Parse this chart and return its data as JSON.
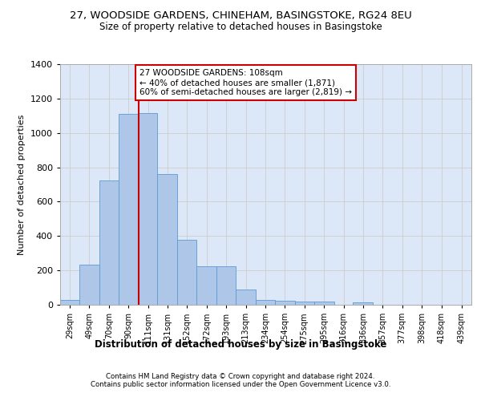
{
  "title_line1": "27, WOODSIDE GARDENS, CHINEHAM, BASINGSTOKE, RG24 8EU",
  "title_line2": "Size of property relative to detached houses in Basingstoke",
  "xlabel": "Distribution of detached houses by size in Basingstoke",
  "ylabel": "Number of detached properties",
  "bin_labels": [
    "29sqm",
    "49sqm",
    "70sqm",
    "90sqm",
    "111sqm",
    "131sqm",
    "152sqm",
    "172sqm",
    "193sqm",
    "213sqm",
    "234sqm",
    "254sqm",
    "275sqm",
    "295sqm",
    "316sqm",
    "336sqm",
    "357sqm",
    "377sqm",
    "398sqm",
    "418sqm",
    "439sqm"
  ],
  "bar_values": [
    30,
    235,
    725,
    1110,
    1115,
    760,
    380,
    222,
    222,
    90,
    30,
    25,
    20,
    17,
    0,
    12,
    0,
    0,
    0,
    0,
    0
  ],
  "bar_color": "#aec6e8",
  "bar_edge_color": "#5b9bd5",
  "vline_color": "#cc0000",
  "annotation_text": "27 WOODSIDE GARDENS: 108sqm\n← 40% of detached houses are smaller (1,871)\n60% of semi-detached houses are larger (2,819) →",
  "annotation_box_color": "#ffffff",
  "annotation_box_edge_color": "#cc0000",
  "ylim": [
    0,
    1400
  ],
  "yticks": [
    0,
    200,
    400,
    600,
    800,
    1000,
    1200,
    1400
  ],
  "grid_color": "#cccccc",
  "background_color": "#dce8f8",
  "footer_line1": "Contains HM Land Registry data © Crown copyright and database right 2024.",
  "footer_line2": "Contains public sector information licensed under the Open Government Licence v3.0.",
  "bin_edges": [
    29,
    49,
    70,
    90,
    111,
    131,
    152,
    172,
    193,
    213,
    234,
    254,
    275,
    295,
    316,
    336,
    357,
    377,
    398,
    418,
    439,
    460
  ]
}
